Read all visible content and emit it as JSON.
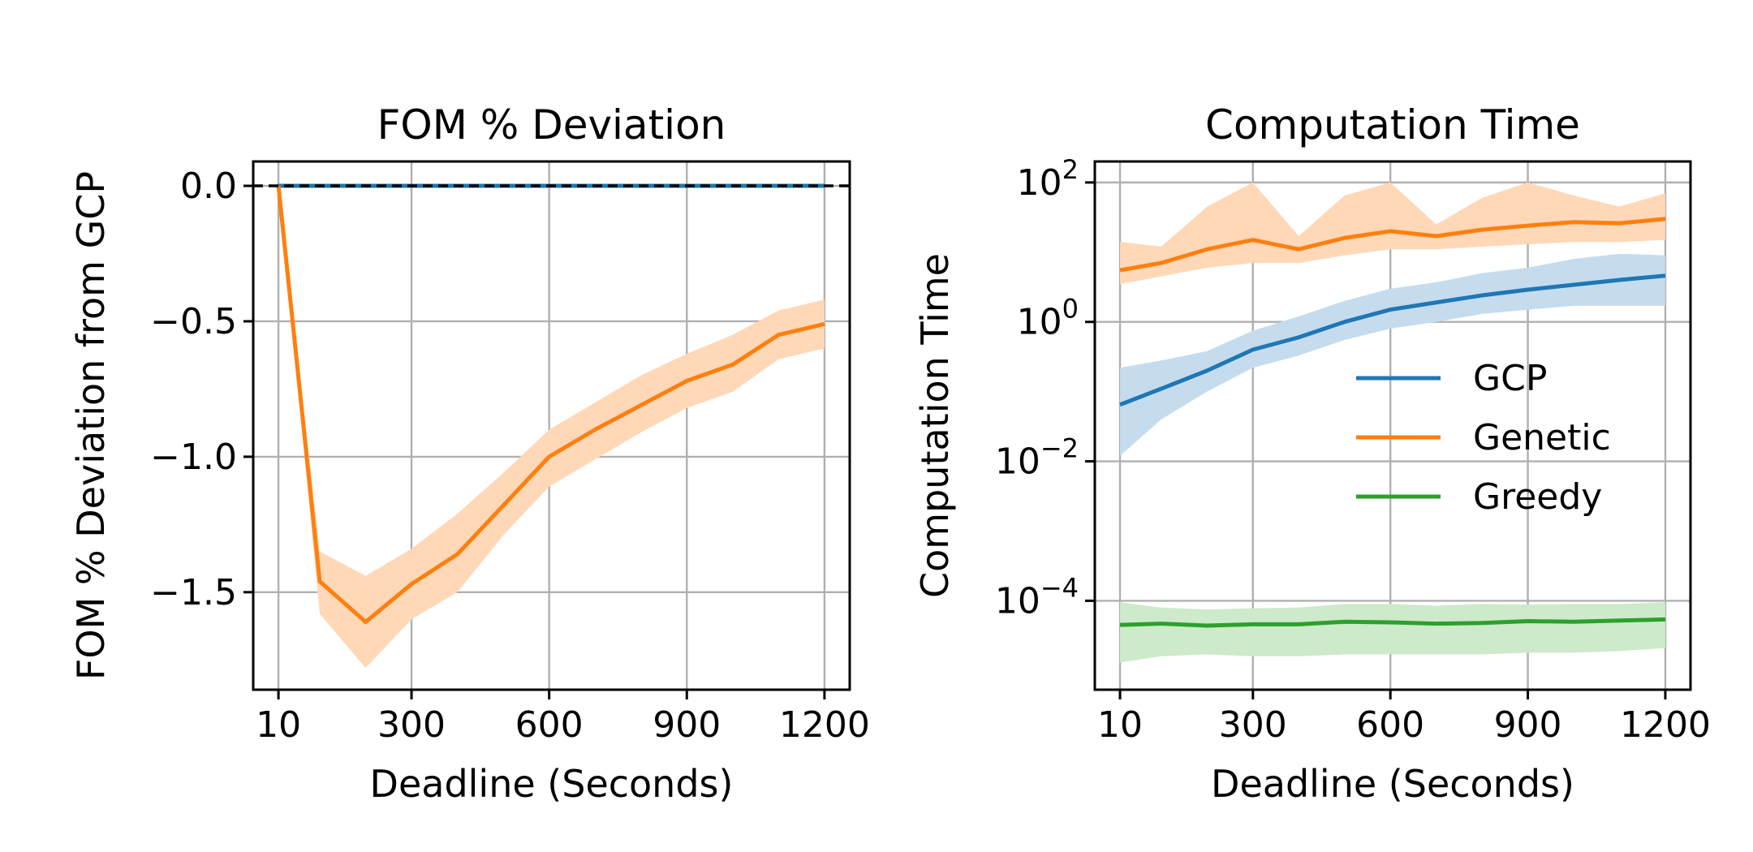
{
  "chart_data": [
    {
      "type": "line",
      "title": "FOM % Deviation",
      "xlabel": "Deadline (Seconds)",
      "ylabel": "FOM % Deviation from GCP",
      "x": [
        10,
        100,
        200,
        300,
        400,
        500,
        600,
        700,
        800,
        900,
        1000,
        1100,
        1200
      ],
      "x_ticks": [
        10,
        300,
        600,
        900,
        1200
      ],
      "y_ticks": [
        0.0,
        -0.5,
        -1.0,
        -1.5
      ],
      "y_tick_labels": [
        "0.0",
        "−0.5",
        "−1.0",
        "−1.5"
      ],
      "xlim": [
        -45,
        1255
      ],
      "ylim": [
        -1.86,
        0.09
      ],
      "grid": true,
      "reference_line": {
        "y": 0,
        "style": "dashed",
        "color": "#000000"
      },
      "series": [
        {
          "color": "#1f77b4",
          "values": [
            0,
            0,
            0,
            0,
            0,
            0,
            0,
            0,
            0,
            0,
            0,
            0,
            0
          ]
        },
        {
          "color": "#ff7f0e",
          "band_color": "#ffd8b8",
          "values": [
            0.0,
            -1.46,
            -1.61,
            -1.47,
            -1.36,
            -1.18,
            -1.0,
            -0.9,
            -0.81,
            -0.72,
            -0.66,
            -0.55,
            -0.51
          ],
          "lower": [
            0.0,
            -1.58,
            -1.78,
            -1.6,
            -1.5,
            -1.29,
            -1.11,
            -1.01,
            -0.91,
            -0.82,
            -0.76,
            -0.64,
            -0.6
          ],
          "upper": [
            0.0,
            -1.35,
            -1.44,
            -1.34,
            -1.21,
            -1.06,
            -0.9,
            -0.8,
            -0.7,
            -0.62,
            -0.55,
            -0.46,
            -0.42
          ]
        }
      ]
    },
    {
      "type": "line",
      "title": "Computation Time",
      "xlabel": "Deadline (Seconds)",
      "ylabel": "Computation Time",
      "yscale": "log",
      "x": [
        10,
        100,
        200,
        300,
        400,
        500,
        600,
        700,
        800,
        900,
        1000,
        1100,
        1200
      ],
      "x_ticks": [
        10,
        300,
        600,
        900,
        1200
      ],
      "y_ticks": [
        100,
        1,
        0.01,
        0.0001
      ],
      "y_tick_base": "10",
      "y_tick_exponents": [
        "2",
        "0",
        "−2",
        "−4"
      ],
      "xlim": [
        -45,
        1255
      ],
      "ylim": [
        5.3e-06,
        200
      ],
      "grid": true,
      "legend": {
        "position": "center-right",
        "entries": [
          "GCP",
          "Genetic",
          "Greedy"
        ]
      },
      "series": [
        {
          "name": "GCP",
          "color": "#1f77b4",
          "band_color": "#c5dcee",
          "values": [
            0.065,
            0.11,
            0.2,
            0.4,
            0.6,
            1.0,
            1.5,
            1.9,
            2.4,
            2.9,
            3.4,
            4.0,
            4.6
          ],
          "lower": [
            0.012,
            0.04,
            0.1,
            0.22,
            0.33,
            0.55,
            0.8,
            1.0,
            1.3,
            1.5,
            1.7,
            1.7,
            1.7
          ],
          "upper": [
            0.22,
            0.28,
            0.38,
            0.75,
            1.2,
            2.0,
            3.0,
            3.7,
            5.0,
            6.0,
            8.0,
            9.5,
            9.0
          ]
        },
        {
          "name": "Genetic",
          "color": "#ff7f0e",
          "band_color": "#ffd8b8",
          "values": [
            5.5,
            7.0,
            11.0,
            15.0,
            11.0,
            16.0,
            20.0,
            17.0,
            21.0,
            24.0,
            27.0,
            26.0,
            30.0
          ],
          "lower": [
            3.5,
            4.5,
            6.0,
            7.0,
            7.0,
            9.0,
            11.0,
            11.0,
            12.0,
            13.0,
            14.0,
            14.0,
            15.0
          ],
          "upper": [
            14.0,
            12.0,
            45.0,
            100.0,
            17.0,
            65.0,
            100.0,
            25.0,
            60.0,
            100.0,
            65.0,
            45.0,
            70.0
          ]
        },
        {
          "name": "Greedy",
          "color": "#2ca02c",
          "band_color": "#cdeacb",
          "values": [
            4.5e-05,
            4.7e-05,
            4.4e-05,
            4.6e-05,
            4.6e-05,
            5e-05,
            4.9e-05,
            4.7e-05,
            4.8e-05,
            5.1e-05,
            5e-05,
            5.2e-05,
            5.4e-05
          ],
          "lower": [
            1.3e-05,
            1.6e-05,
            1.7e-05,
            1.6e-05,
            1.6e-05,
            1.7e-05,
            1.7e-05,
            1.7e-05,
            1.7e-05,
            1.8e-05,
            1.8e-05,
            1.9e-05,
            2.1e-05
          ],
          "upper": [
            9.5e-05,
            8e-05,
            7.5e-05,
            7.8e-05,
            8e-05,
            9e-05,
            9e-05,
            8.5e-05,
            9e-05,
            8.8e-05,
            9e-05,
            9e-05,
            9.5e-05
          ]
        }
      ]
    }
  ]
}
